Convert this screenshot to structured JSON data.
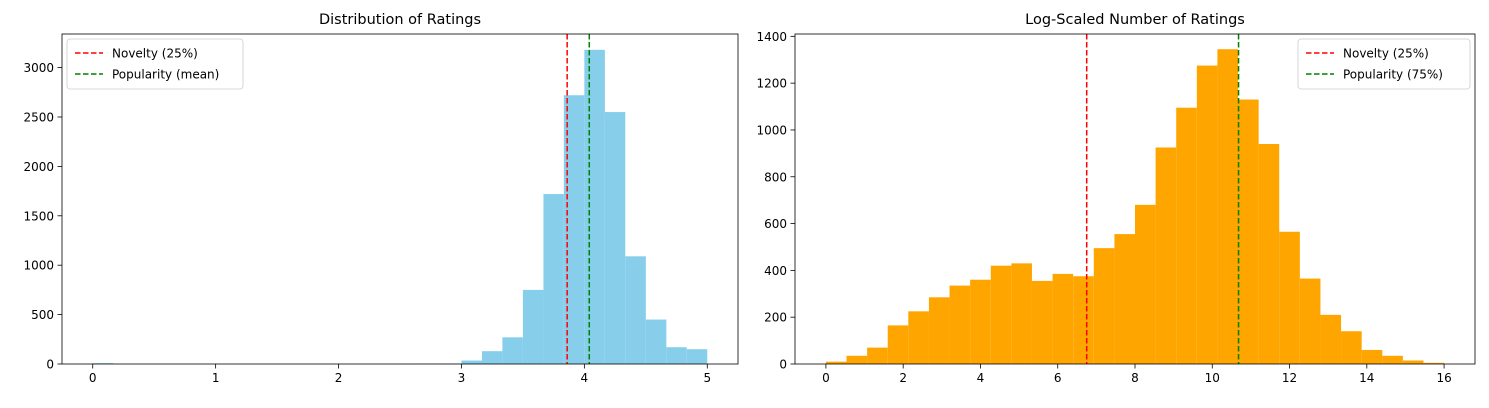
{
  "chart_data": [
    {
      "type": "bar",
      "title": "Distribution of Ratings",
      "xlabel": "",
      "ylabel": "",
      "xlim": [
        -0.25,
        5.25
      ],
      "ylim": [
        0,
        3340
      ],
      "xticks": [
        0,
        1,
        2,
        3,
        4,
        5
      ],
      "yticks": [
        0,
        500,
        1000,
        1500,
        2000,
        2500,
        3000
      ],
      "bin_edges": [
        0,
        0.167,
        0.333,
        0.5,
        0.667,
        0.833,
        1.0,
        1.167,
        1.333,
        1.5,
        1.667,
        1.833,
        2.0,
        2.167,
        2.333,
        2.5,
        2.667,
        2.833,
        3.0,
        3.167,
        3.333,
        3.5,
        3.667,
        3.833,
        4.0,
        4.167,
        4.333,
        4.5,
        4.667,
        4.833,
        5.0
      ],
      "counts": [
        8,
        0,
        0,
        0,
        0,
        0,
        0,
        0,
        0,
        0,
        0,
        0,
        0,
        0,
        0,
        2,
        3,
        5,
        35,
        130,
        270,
        750,
        1720,
        2720,
        3180,
        2550,
        1090,
        450,
        170,
        150
      ],
      "bar_color": "#87ceeb",
      "vlines": [
        {
          "name": "Novelty (25%)",
          "x": 3.86,
          "color": "#ff0000"
        },
        {
          "name": "Popularity (mean)",
          "x": 4.04,
          "color": "#008000"
        }
      ],
      "legend": "upper-left",
      "grid": false
    },
    {
      "type": "bar",
      "title": "Log-Scaled Number of Ratings",
      "xlabel": "",
      "ylabel": "",
      "xlim": [
        -0.8,
        16.8
      ],
      "ylim": [
        0,
        1410
      ],
      "xticks": [
        0,
        2,
        4,
        6,
        8,
        10,
        12,
        14,
        16
      ],
      "yticks": [
        0,
        200,
        400,
        600,
        800,
        1000,
        1200,
        1400
      ],
      "bin_edges": [
        0,
        0.533,
        1.067,
        1.6,
        2.133,
        2.667,
        3.2,
        3.733,
        4.267,
        4.8,
        5.333,
        5.867,
        6.4,
        6.933,
        7.467,
        8.0,
        8.533,
        9.067,
        9.6,
        10.133,
        10.667,
        11.2,
        11.733,
        12.267,
        12.8,
        13.333,
        13.867,
        14.4,
        14.933,
        15.467,
        16.0
      ],
      "counts": [
        10,
        35,
        70,
        165,
        225,
        285,
        335,
        360,
        420,
        430,
        355,
        385,
        375,
        495,
        555,
        680,
        925,
        1095,
        1275,
        1345,
        1130,
        940,
        565,
        365,
        210,
        140,
        60,
        35,
        15,
        5
      ],
      "bar_color": "#ffa500",
      "vlines": [
        {
          "name": "Novelty (25%)",
          "x": 6.75,
          "color": "#ff0000"
        },
        {
          "name": "Popularity (75%)",
          "x": 10.68,
          "color": "#008000"
        }
      ],
      "legend": "upper-right",
      "grid": false
    }
  ]
}
